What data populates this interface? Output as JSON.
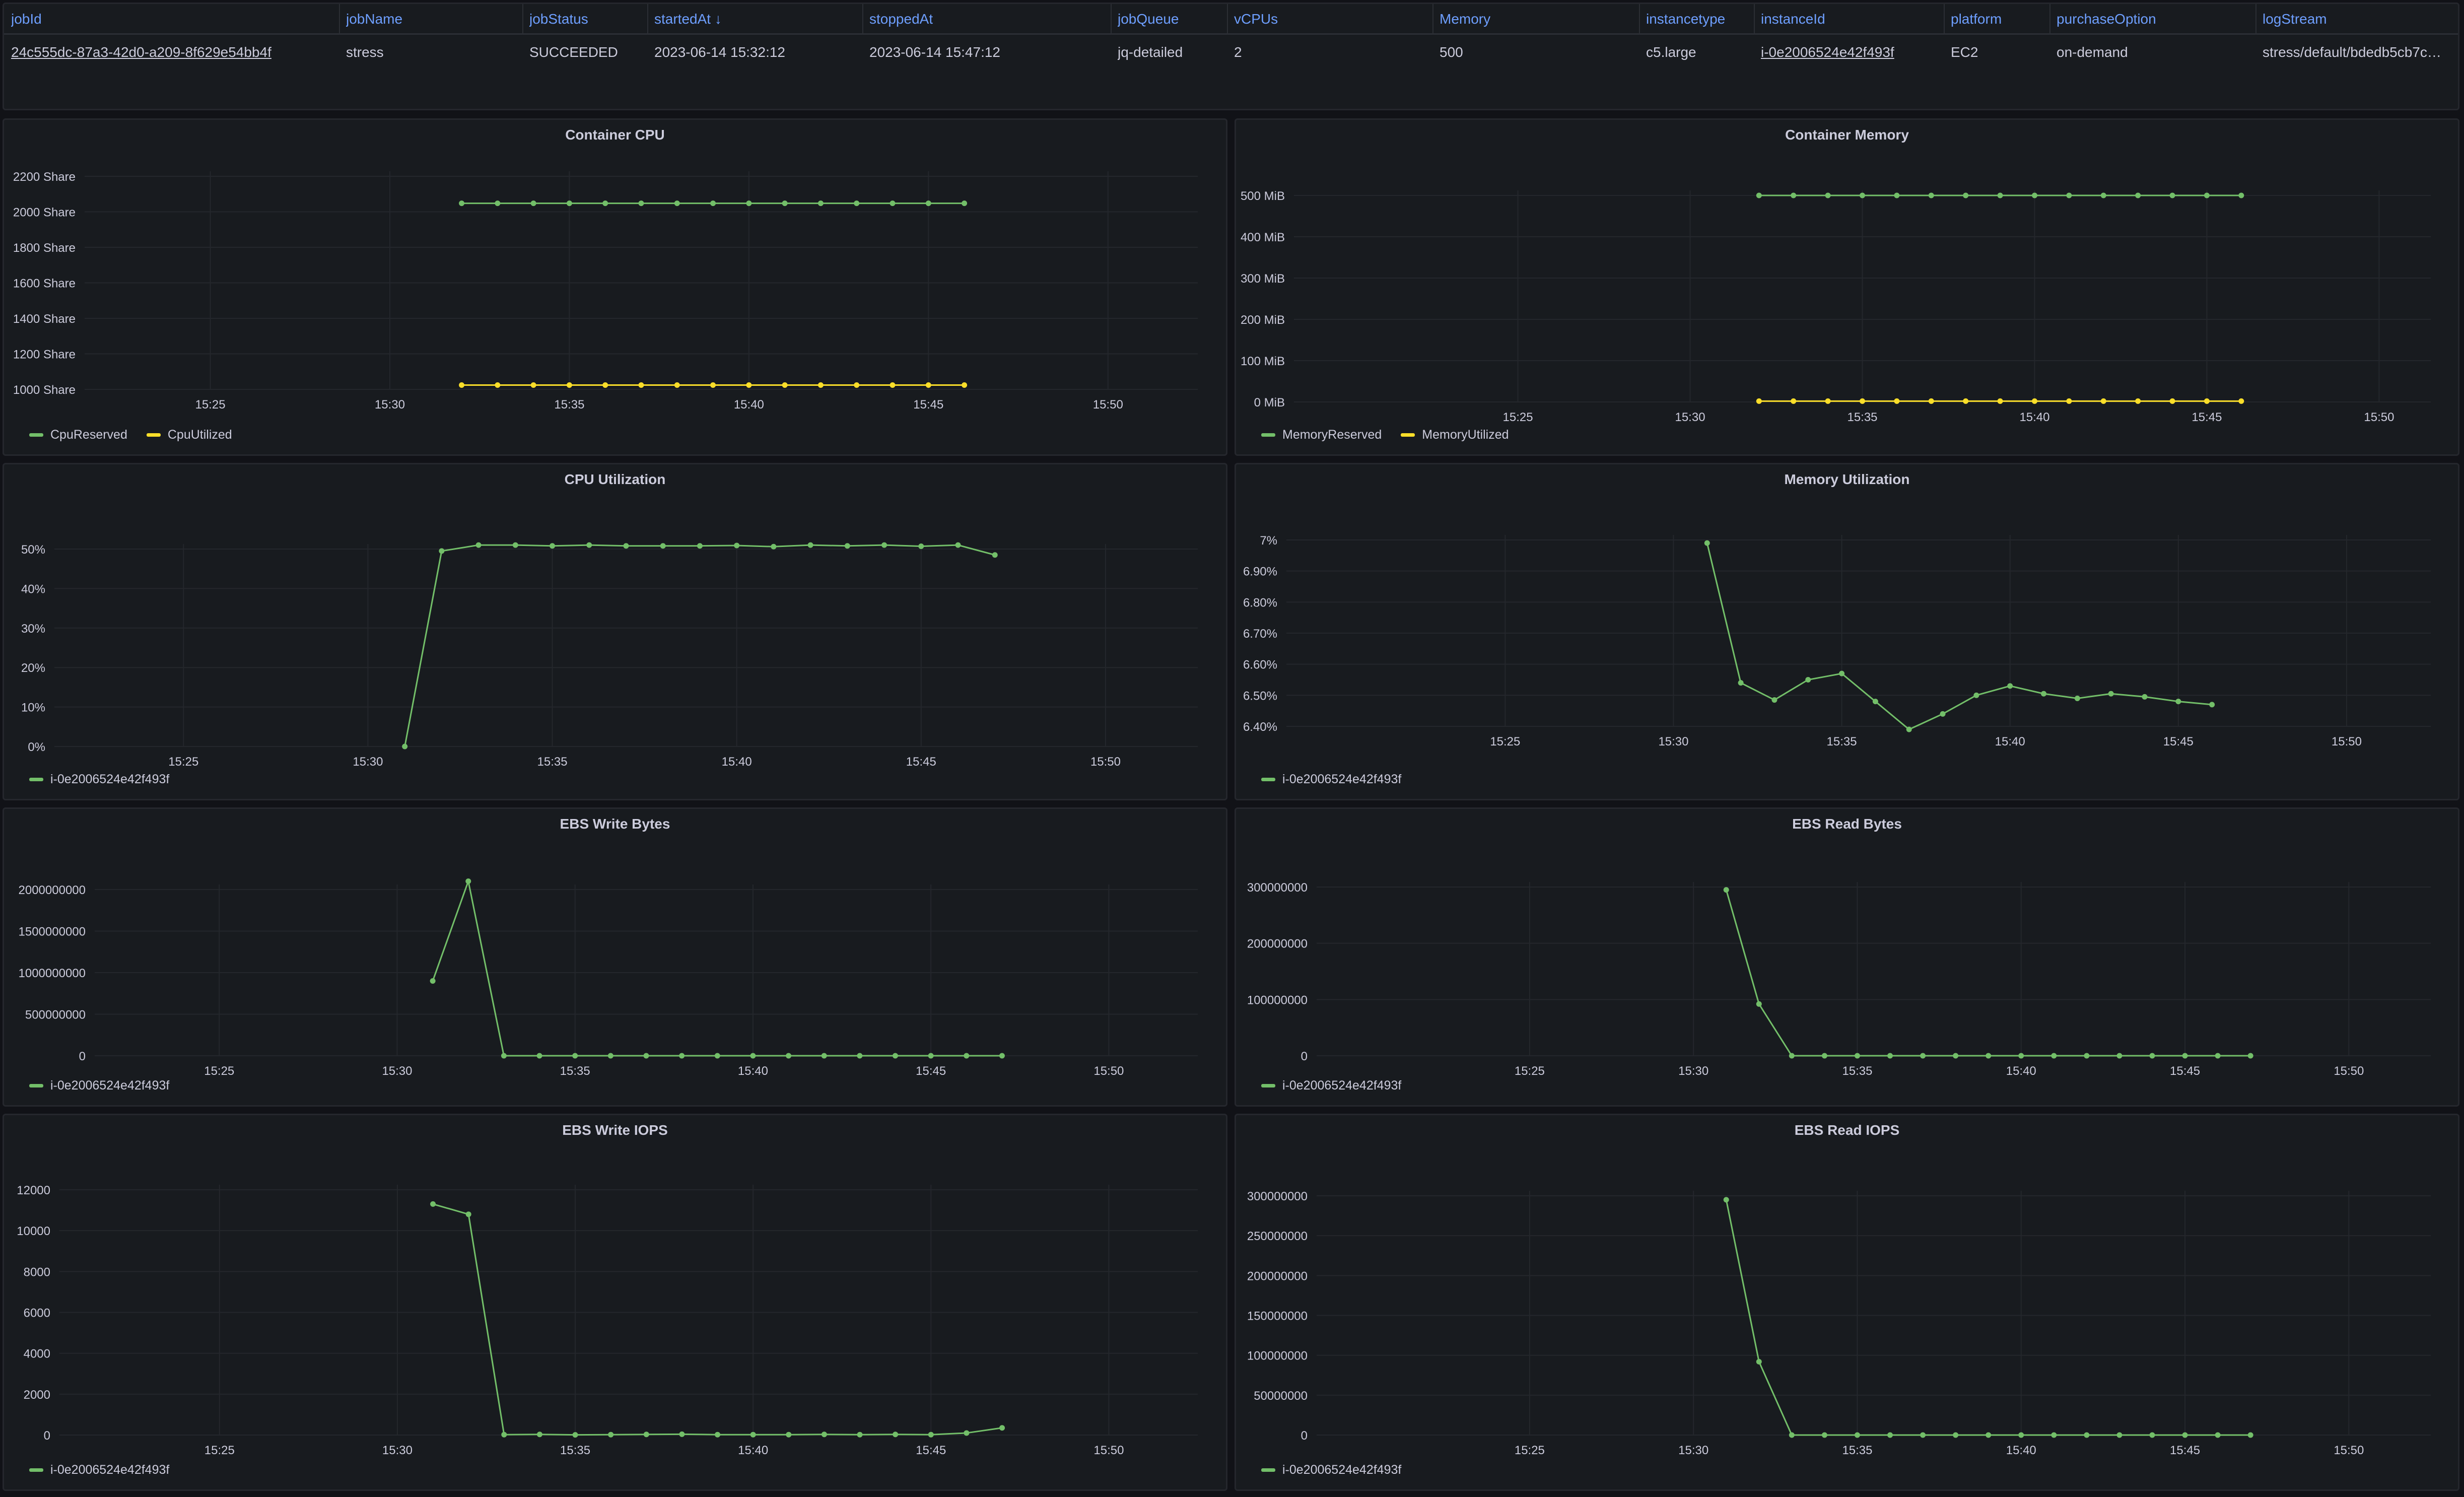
{
  "colors": {
    "green": "#73bf69",
    "yellow": "#fade2a",
    "link": "#6e9fff"
  },
  "table": {
    "columns": [
      "jobId",
      "jobName",
      "jobStatus",
      "startedAt ↓",
      "stoppedAt",
      "jobQueue",
      "vCPUs",
      "Memory",
      "instancetype",
      "instanceId",
      "platform",
      "purchaseOption",
      "logStream"
    ],
    "row": [
      "24c555dc-87a3-42d0-a209-8f629e54bb4f",
      "stress",
      "SUCCEEDED",
      "2023-06-14 15:32:12",
      "2023-06-14 15:47:12",
      "jq-detailed",
      "2",
      "500",
      "c5.large",
      "i-0e2006524e42f493f",
      "EC2",
      "on-demand",
      "stress/default/bdedb5cb7c…"
    ]
  },
  "panels": [
    {
      "id": "container-cpu",
      "chart_data": {
        "type": "line",
        "title": "Container CPU",
        "x_ticks": [
          "15:25",
          "15:30",
          "15:35",
          "15:40",
          "15:45",
          "15:50"
        ],
        "y_ticks": [
          "1000 Share",
          "1200 Share",
          "1400 Share",
          "1600 Share",
          "1800 Share",
          "2000 Share",
          "2200 Share"
        ],
        "ylim": [
          1000,
          2200
        ],
        "series": [
          {
            "name": "CpuReserved",
            "color": "#73bf69",
            "x": [
              32,
              33,
              34,
              35,
              36,
              37,
              38,
              39,
              40,
              41,
              42,
              43,
              44,
              45,
              46
            ],
            "values": [
              2048,
              2048,
              2048,
              2048,
              2048,
              2048,
              2048,
              2048,
              2048,
              2048,
              2048,
              2048,
              2048,
              2048,
              2048
            ]
          },
          {
            "name": "CpuUtilized",
            "color": "#fade2a",
            "x": [
              32,
              33,
              34,
              35,
              36,
              37,
              38,
              39,
              40,
              41,
              42,
              43,
              44,
              45,
              46
            ],
            "values": [
              1024,
              1024,
              1024,
              1024,
              1024,
              1024,
              1024,
              1024,
              1024,
              1024,
              1024,
              1024,
              1024,
              1024,
              1024
            ]
          }
        ]
      }
    },
    {
      "id": "container-memory",
      "chart_data": {
        "type": "line",
        "title": "Container Memory",
        "x_ticks": [
          "15:25",
          "15:30",
          "15:35",
          "15:40",
          "15:45",
          "15:50"
        ],
        "y_ticks": [
          "0 MiB",
          "100 MiB",
          "200 MiB",
          "300 MiB",
          "400 MiB",
          "500 MiB"
        ],
        "ylim": [
          0,
          500
        ],
        "series": [
          {
            "name": "MemoryReserved",
            "color": "#73bf69",
            "x": [
              32,
              33,
              34,
              35,
              36,
              37,
              38,
              39,
              40,
              41,
              42,
              43,
              44,
              45,
              46
            ],
            "values": [
              500,
              500,
              500,
              500,
              500,
              500,
              500,
              500,
              500,
              500,
              500,
              500,
              500,
              500,
              500
            ]
          },
          {
            "name": "MemoryUtilized",
            "color": "#fade2a",
            "x": [
              32,
              33,
              34,
              35,
              36,
              37,
              38,
              39,
              40,
              41,
              42,
              43,
              44,
              45,
              46
            ],
            "values": [
              2,
              2,
              2,
              2,
              2,
              2,
              2,
              2,
              2,
              2,
              2,
              2,
              2,
              2,
              2
            ]
          }
        ]
      }
    },
    {
      "id": "cpu-utilization",
      "chart_data": {
        "type": "line",
        "title": "CPU Utilization",
        "x_ticks": [
          "15:25",
          "15:30",
          "15:35",
          "15:40",
          "15:45",
          "15:50"
        ],
        "y_ticks": [
          "0%",
          "10%",
          "20%",
          "30%",
          "40%",
          "50%"
        ],
        "ylim": [
          0,
          50
        ],
        "series": [
          {
            "name": "i-0e2006524e42f493f",
            "color": "#73bf69",
            "x": [
              31,
              32,
              33,
              34,
              35,
              36,
              37,
              38,
              39,
              40,
              41,
              42,
              43,
              44,
              45,
              46,
              47
            ],
            "values": [
              0,
              49.5,
              51,
              51,
              50.8,
              51,
              50.8,
              50.8,
              50.8,
              50.9,
              50.6,
              51,
              50.8,
              51,
              50.7,
              51,
              48.5
            ]
          }
        ]
      }
    },
    {
      "id": "memory-utilization",
      "chart_data": {
        "type": "line",
        "title": "Memory Utilization",
        "x_ticks": [
          "15:25",
          "15:30",
          "15:35",
          "15:40",
          "15:45",
          "15:50"
        ],
        "y_ticks": [
          "6.40%",
          "6.50%",
          "6.60%",
          "6.70%",
          "6.80%",
          "6.90%",
          "7%"
        ],
        "ylim": [
          6.4,
          7.0
        ],
        "series": [
          {
            "name": "i-0e2006524e42f493f",
            "color": "#73bf69",
            "x": [
              31,
              32,
              33,
              34,
              35,
              36,
              37,
              38,
              39,
              40,
              41,
              42,
              43,
              44,
              45,
              46
            ],
            "values": [
              6.99,
              6.54,
              6.485,
              6.55,
              6.57,
              6.48,
              6.39,
              6.44,
              6.5,
              6.53,
              6.505,
              6.49,
              6.505,
              6.495,
              6.48,
              6.47
            ]
          }
        ]
      }
    },
    {
      "id": "ebs-write-bytes",
      "chart_data": {
        "type": "line",
        "title": "EBS Write Bytes",
        "x_ticks": [
          "15:25",
          "15:30",
          "15:35",
          "15:40",
          "15:45",
          "15:50"
        ],
        "y_ticks": [
          "0",
          "500000000",
          "1000000000",
          "1500000000",
          "2000000000"
        ],
        "ylim": [
          0,
          2000000000
        ],
        "series": [
          {
            "name": "i-0e2006524e42f493f",
            "color": "#73bf69",
            "x": [
              31,
              32,
              33,
              34,
              35,
              36,
              37,
              38,
              39,
              40,
              41,
              42,
              43,
              44,
              45,
              46,
              47
            ],
            "values": [
              900000000,
              2100000000,
              0,
              0,
              0,
              0,
              0,
              0,
              0,
              0,
              0,
              0,
              0,
              0,
              0,
              0,
              0
            ]
          }
        ]
      }
    },
    {
      "id": "ebs-read-bytes",
      "chart_data": {
        "type": "line",
        "title": "EBS Read Bytes",
        "x_ticks": [
          "15:25",
          "15:30",
          "15:35",
          "15:40",
          "15:45",
          "15:50"
        ],
        "y_ticks": [
          "0",
          "100000000",
          "200000000",
          "300000000"
        ],
        "ylim": [
          0,
          300000000
        ],
        "series": [
          {
            "name": "i-0e2006524e42f493f",
            "color": "#73bf69",
            "x": [
              31,
              32,
              33,
              34,
              35,
              36,
              37,
              38,
              39,
              40,
              41,
              42,
              43,
              44,
              45,
              46,
              47
            ],
            "values": [
              295000000,
              92000000,
              0,
              0,
              0,
              0,
              0,
              0,
              0,
              0,
              0,
              0,
              0,
              0,
              0,
              0,
              0
            ]
          }
        ]
      }
    },
    {
      "id": "ebs-write-iops",
      "chart_data": {
        "type": "line",
        "title": "EBS Write IOPS",
        "x_ticks": [
          "15:25",
          "15:30",
          "15:35",
          "15:40",
          "15:45",
          "15:50"
        ],
        "y_ticks": [
          "0",
          "2000",
          "4000",
          "6000",
          "8000",
          "10000",
          "12000"
        ],
        "ylim": [
          0,
          12000
        ],
        "series": [
          {
            "name": "i-0e2006524e42f493f",
            "color": "#73bf69",
            "x": [
              31,
              32,
              33,
              34,
              35,
              36,
              37,
              38,
              39,
              40,
              41,
              42,
              43,
              44,
              45,
              46,
              47
            ],
            "values": [
              11300,
              10800,
              20,
              30,
              10,
              20,
              30,
              40,
              20,
              20,
              20,
              30,
              20,
              30,
              20,
              100,
              350
            ]
          }
        ]
      }
    },
    {
      "id": "ebs-read-iops",
      "chart_data": {
        "type": "line",
        "title": "EBS Read IOPS",
        "x_ticks": [
          "15:25",
          "15:30",
          "15:35",
          "15:40",
          "15:45",
          "15:50"
        ],
        "y_ticks": [
          "0",
          "50000000",
          "100000000",
          "150000000",
          "200000000",
          "250000000",
          "300000000"
        ],
        "ylim": [
          0,
          300000000
        ],
        "series": [
          {
            "name": "i-0e2006524e42f493f",
            "color": "#73bf69",
            "x": [
              31,
              32,
              33,
              34,
              35,
              36,
              37,
              38,
              39,
              40,
              41,
              42,
              43,
              44,
              45,
              46,
              47
            ],
            "values": [
              295000000,
              92000000,
              0,
              0,
              0,
              0,
              0,
              0,
              0,
              0,
              0,
              0,
              0,
              0,
              0,
              0,
              0
            ]
          }
        ]
      }
    }
  ]
}
